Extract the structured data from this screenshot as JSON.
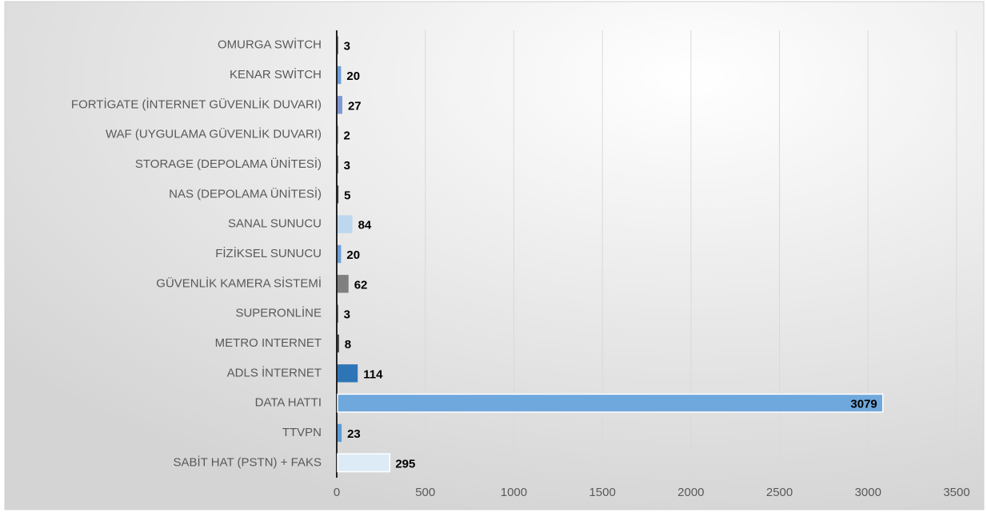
{
  "chart_data": {
    "type": "bar",
    "orientation": "horizontal",
    "categories": [
      "OMURGA SWİTCH",
      "KENAR SWİTCH",
      "FORTİGATE (İNTERNET GÜVENLİK DUVARI)",
      "WAF (UYGULAMA GÜVENLİK DUVARI)",
      "STORAGE (DEPOLAMA ÜNİTESİ)",
      "NAS (DEPOLAMA ÜNİTESİ)",
      "SANAL SUNUCU",
      "FİZİKSEL SUNUCU",
      "GÜVENLİK KAMERA SİSTEMİ",
      "SUPERONLİNE",
      "METRO INTERNET",
      "ADLS İNTERNET",
      "DATA HATTI",
      "TTVPN",
      "SABİT HAT (PSTN) + FAKS"
    ],
    "values": [
      3,
      20,
      27,
      2,
      3,
      5,
      84,
      20,
      62,
      3,
      8,
      114,
      3079,
      23,
      295
    ],
    "colors": [
      "#3a3a3a",
      "#6f9fd8",
      "#7f97d6",
      "#3a3a3a",
      "#3a3a3a",
      "#3a3a3a",
      "#bdd7ee",
      "#6f9fd8",
      "#7f7f7f",
      "#3a3a3a",
      "#3a3a3a",
      "#2e75b6",
      "#6fa8dc",
      "#5b9bd5",
      "#ddebf7"
    ],
    "xlim": [
      0,
      3500
    ],
    "xticks": [
      0,
      500,
      1000,
      1500,
      2000,
      2500,
      3000,
      3500
    ],
    "grid": true
  }
}
